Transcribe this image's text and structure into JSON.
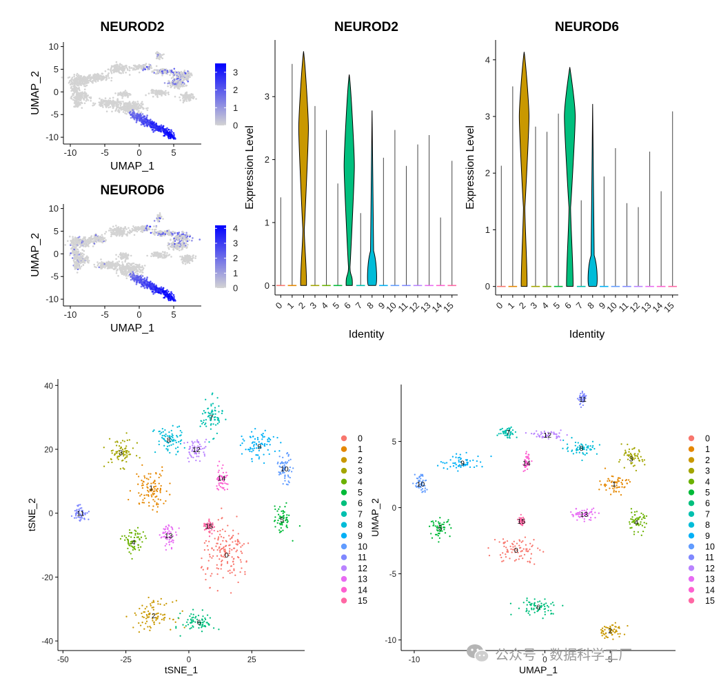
{
  "watermark": {
    "text": "公众号 · 数据科学工厂",
    "icon": "wechat-icon"
  },
  "palette": [
    "#F8766D",
    "#E58700",
    "#C99800",
    "#A3A500",
    "#6BB100",
    "#00BA38",
    "#00BF7D",
    "#00C0AF",
    "#00BCD8",
    "#00B0F6",
    "#619CFF",
    "#7F88FF",
    "#B983FF",
    "#E76BF3",
    "#FD61D1",
    "#FF67A4"
  ],
  "chart_data": [
    {
      "id": "featureplot-neurod2",
      "type": "scatter",
      "title": "NEUROD2",
      "xlabel": "UMAP_1",
      "ylabel": "UMAP_2",
      "xlim": [
        -11,
        9
      ],
      "ylim": [
        -11.5,
        11
      ],
      "xticks": [
        -10,
        -5,
        0,
        5
      ],
      "yticks": [
        -10,
        -5,
        0,
        5,
        10
      ],
      "colorbar": {
        "min": 0,
        "max": 3.5,
        "ticks": [
          0,
          1,
          2,
          3
        ],
        "low_color": "#D3D3D3",
        "high_color": "#0000FF"
      },
      "expressing_clusters": [
        2,
        6
      ],
      "secondary_clusters": [
        1,
        3,
        8,
        7
      ]
    },
    {
      "id": "featureplot-neurod6",
      "type": "scatter",
      "title": "NEUROD6",
      "xlabel": "UMAP_1",
      "ylabel": "UMAP_2",
      "xlim": [
        -11,
        9
      ],
      "ylim": [
        -11.5,
        11
      ],
      "xticks": [
        -10,
        -5,
        0,
        5
      ],
      "yticks": [
        -10,
        -5,
        0,
        5,
        10
      ],
      "colorbar": {
        "min": 0,
        "max": 4.2,
        "ticks": [
          0,
          1,
          2,
          3,
          4
        ],
        "low_color": "#D3D3D3",
        "high_color": "#0000FF"
      },
      "expressing_clusters": [
        2,
        6
      ],
      "secondary_clusters": [
        1,
        3,
        8,
        10,
        7
      ]
    },
    {
      "id": "vlnplot-neurod2",
      "type": "violin",
      "title": "NEUROD2",
      "xlabel": "Identity",
      "ylabel": "Expression Level",
      "categories": [
        "0",
        "1",
        "2",
        "3",
        "4",
        "5",
        "6",
        "7",
        "8",
        "9",
        "10",
        "11",
        "12",
        "13",
        "14",
        "15"
      ],
      "ylim": [
        -0.15,
        3.9
      ],
      "yticks": [
        0,
        1,
        2,
        3
      ],
      "max_values": [
        1.4,
        3.52,
        3.72,
        2.85,
        2.47,
        1.62,
        3.35,
        1.15,
        2.78,
        2.03,
        2.47,
        1.9,
        2.24,
        2.39,
        1.08,
        1.98
      ],
      "violin_body": [
        {
          "cluster": 2,
          "center": 2.5,
          "halfwidth": 0.85
        },
        {
          "cluster": 6,
          "center": 1.9,
          "halfwidth": 0.9
        },
        {
          "cluster": 8,
          "center": 0.25,
          "halfwidth": 0.9
        }
      ]
    },
    {
      "id": "vlnplot-neurod6",
      "type": "violin",
      "title": "NEUROD6",
      "xlabel": "Identity",
      "ylabel": "Expression Level",
      "categories": [
        "0",
        "1",
        "2",
        "3",
        "4",
        "5",
        "6",
        "7",
        "8",
        "9",
        "10",
        "11",
        "12",
        "13",
        "14",
        "15"
      ],
      "ylim": [
        -0.15,
        4.35
      ],
      "yticks": [
        0,
        1,
        2,
        3,
        4
      ],
      "max_values": [
        2.13,
        3.53,
        4.14,
        2.82,
        2.73,
        3.05,
        3.87,
        1.52,
        3.22,
        1.94,
        2.44,
        1.47,
        1.4,
        2.38,
        1.68,
        3.09
      ],
      "violin_body": [
        {
          "cluster": 2,
          "center": 3.0,
          "halfwidth": 0.85
        },
        {
          "cluster": 6,
          "center": 3.0,
          "halfwidth": 0.95
        },
        {
          "cluster": 8,
          "center": 0.3,
          "halfwidth": 0.9
        }
      ]
    },
    {
      "id": "tsne-dimplot",
      "type": "scatter",
      "xlabel": "tSNE_1",
      "ylabel": "tSNE_2",
      "xlim": [
        -52,
        46
      ],
      "ylim": [
        -43,
        42
      ],
      "xticks": [
        -50,
        -25,
        0,
        25
      ],
      "yticks": [
        -40,
        -20,
        0,
        20,
        40
      ],
      "legend": [
        "0",
        "1",
        "2",
        "3",
        "4",
        "5",
        "6",
        "7",
        "8",
        "9",
        "10",
        "11",
        "12",
        "13",
        "14",
        "15"
      ],
      "cluster_centers": [
        [
          15,
          -13
        ],
        [
          -15,
          8
        ],
        [
          -14,
          -32
        ],
        [
          -27,
          19
        ],
        [
          -22,
          -9
        ],
        [
          37,
          -2
        ],
        [
          4,
          -34
        ],
        [
          9,
          30
        ],
        [
          -8,
          23
        ],
        [
          28,
          21
        ],
        [
          38,
          14
        ],
        [
          -43,
          0
        ],
        [
          3,
          20
        ],
        [
          -8,
          -7
        ],
        [
          13,
          11
        ],
        [
          8,
          -4
        ]
      ],
      "cluster_spread": [
        [
          9,
          8
        ],
        [
          6,
          6
        ],
        [
          7,
          4
        ],
        [
          5,
          4
        ],
        [
          4,
          4
        ],
        [
          3,
          4
        ],
        [
          6,
          3
        ],
        [
          4,
          5
        ],
        [
          5,
          4
        ],
        [
          6,
          4
        ],
        [
          3,
          4
        ],
        [
          2.5,
          2.5
        ],
        [
          4,
          3
        ],
        [
          3,
          3
        ],
        [
          2,
          4
        ],
        [
          2,
          2
        ]
      ],
      "cluster_labels": [
        "0",
        "1",
        "2",
        "3",
        "4",
        "5",
        "6",
        "7",
        "8",
        "9",
        "10",
        "11",
        "12",
        "13",
        "14",
        "15"
      ]
    },
    {
      "id": "umap-dimplot",
      "type": "scatter",
      "xlabel": "UMAP_1",
      "ylabel": "UMAP_2",
      "xlim": [
        -11,
        10
      ],
      "ylim": [
        -10.8,
        9.3
      ],
      "xticks": [
        -10,
        -5,
        0,
        5
      ],
      "yticks": [
        -10,
        -5,
        0,
        5
      ],
      "legend": [
        "0",
        "1",
        "2",
        "3",
        "4",
        "5",
        "6",
        "7",
        "8",
        "9",
        "10",
        "11",
        "12",
        "13",
        "14",
        "15"
      ],
      "cluster_centers": [
        [
          -2.2,
          -3.2
        ],
        [
          5.3,
          1.8
        ],
        [
          5,
          -9.3
        ],
        [
          6.6,
          3.7
        ],
        [
          7,
          -1.1
        ],
        [
          -8,
          -1.5
        ],
        [
          -0.5,
          -7.5
        ],
        [
          -2.8,
          5.7
        ],
        [
          2.8,
          4.5
        ],
        [
          -6.3,
          3.4
        ],
        [
          -9.5,
          1.8
        ],
        [
          2.9,
          8.2
        ],
        [
          0.2,
          5.5
        ],
        [
          3,
          -0.5
        ],
        [
          -1.4,
          3.4
        ],
        [
          -1.8,
          -1
        ]
      ],
      "cluster_spread": [
        [
          1.6,
          0.9
        ],
        [
          1,
          0.7
        ],
        [
          1,
          0.5
        ],
        [
          0.9,
          0.7
        ],
        [
          0.7,
          0.7
        ],
        [
          0.7,
          0.6
        ],
        [
          1.6,
          0.6
        ],
        [
          0.6,
          0.4
        ],
        [
          1.2,
          0.5
        ],
        [
          1.6,
          0.5
        ],
        [
          0.4,
          0.8
        ],
        [
          0.3,
          0.4
        ],
        [
          1,
          0.3
        ],
        [
          1,
          0.4
        ],
        [
          0.2,
          0.6
        ],
        [
          0.2,
          0.3
        ]
      ],
      "cluster_labels": [
        "0",
        "1",
        "2",
        "3",
        "4",
        "5",
        "6",
        "7",
        "8",
        "9",
        "10",
        "11",
        "12",
        "13",
        "14",
        "15"
      ]
    }
  ]
}
